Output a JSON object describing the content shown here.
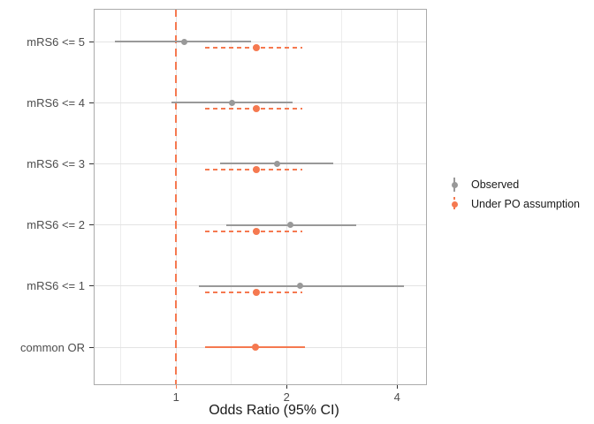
{
  "chart_data": {
    "type": "scatter",
    "subtype": "forest-plot-pointrange",
    "title": "",
    "xlabel": "Odds Ratio (95% CI)",
    "ylabel": "",
    "x_scale": "log2",
    "x_ticks": [
      1,
      2,
      4
    ],
    "x_minor_gridlines": [
      0.7071,
      1.4142,
      2.8284
    ],
    "xlim": [
      0.6,
      4.85
    ],
    "grid": true,
    "legend_position": "right",
    "categories": [
      "mRS6 <= 5",
      "mRS6 <= 4",
      "mRS6 <= 3",
      "mRS6 <= 2",
      "mRS6 <= 1",
      "common OR"
    ],
    "reference_line": {
      "x": 1,
      "style": "dashed",
      "color": "#F57950"
    },
    "colors": {
      "observed": "#999999",
      "po": "#F57950",
      "grid_major": "#E3E3E3",
      "grid_minor": "#EDEDED",
      "panel_border": "#ABABAB",
      "tick_mark": "#333333",
      "tick_text": "#4D4D4D",
      "text": "#1A1A1A"
    },
    "series": [
      {
        "name": "Observed",
        "color": "#999999",
        "line_style": "solid",
        "points": [
          {
            "category": "mRS6 <= 5",
            "or": 1.05,
            "ci_low": 0.68,
            "ci_high": 1.6
          },
          {
            "category": "mRS6 <= 4",
            "or": 1.42,
            "ci_low": 0.97,
            "ci_high": 2.08
          },
          {
            "category": "mRS6 <= 3",
            "or": 1.88,
            "ci_low": 1.32,
            "ci_high": 2.68
          },
          {
            "category": "mRS6 <= 2",
            "or": 2.05,
            "ci_low": 1.37,
            "ci_high": 3.1
          },
          {
            "category": "mRS6 <= 1",
            "or": 2.18,
            "ci_low": 1.15,
            "ci_high": 4.17
          }
        ]
      },
      {
        "name": "Under PO assumption",
        "color": "#F57950",
        "line_style": "dashed",
        "points": [
          {
            "category": "mRS6 <= 5",
            "or": 1.65,
            "ci_low": 1.2,
            "ci_high": 2.21
          },
          {
            "category": "mRS6 <= 4",
            "or": 1.65,
            "ci_low": 1.2,
            "ci_high": 2.21
          },
          {
            "category": "mRS6 <= 3",
            "or": 1.65,
            "ci_low": 1.2,
            "ci_high": 2.21
          },
          {
            "category": "mRS6 <= 2",
            "or": 1.65,
            "ci_low": 1.2,
            "ci_high": 2.21
          },
          {
            "category": "mRS6 <= 1",
            "or": 1.65,
            "ci_low": 1.2,
            "ci_high": 2.21
          },
          {
            "category": "common OR",
            "or": 1.64,
            "ci_low": 1.2,
            "ci_high": 2.24,
            "line_style": "solid"
          }
        ]
      }
    ]
  }
}
